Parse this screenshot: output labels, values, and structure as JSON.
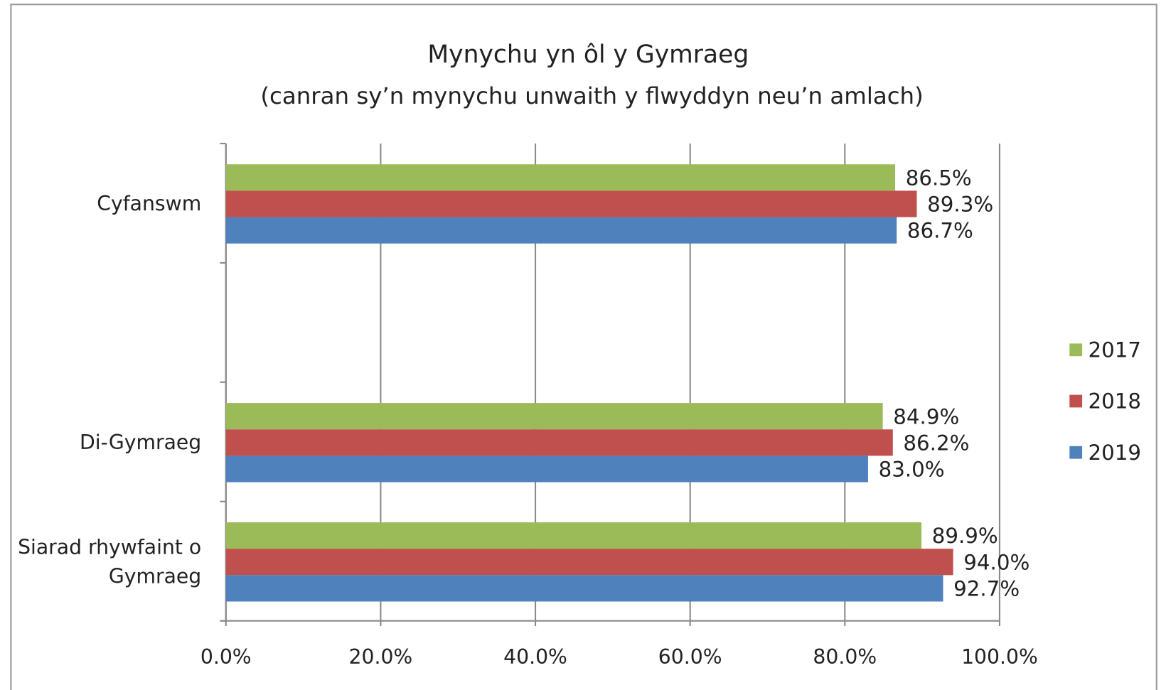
{
  "chart_data": {
    "type": "barh",
    "title": "Mynychu yn ôl y Gymraeg",
    "subtitle": "(canran sy’n mynychu unwaith y flwyddyn neu’n amlach)",
    "categories": [
      "Cyfanswm",
      null,
      "Di-Gymraeg",
      "Siarad rhywfaint o Gymraeg"
    ],
    "series": [
      {
        "name": "2017",
        "color": "#9bbb59",
        "values": [
          86.5,
          null,
          84.9,
          89.9
        ],
        "value_labels": [
          "86.5%",
          null,
          "84.9%",
          "89.9%"
        ]
      },
      {
        "name": "2018",
        "color": "#c0504d",
        "values": [
          89.3,
          null,
          86.2,
          94.0
        ],
        "value_labels": [
          "89.3%",
          null,
          "86.2%",
          "94.0%"
        ]
      },
      {
        "name": "2019",
        "color": "#4f81bd",
        "values": [
          86.7,
          null,
          83.0,
          92.7
        ],
        "value_labels": [
          "86.7%",
          null,
          "83.0%",
          "92.7%"
        ]
      }
    ],
    "xlim": [
      0,
      100
    ],
    "xticks": [
      {
        "value": 0,
        "label": "0.0%"
      },
      {
        "value": 20,
        "label": "20.0%"
      },
      {
        "value": 40,
        "label": "40.0%"
      },
      {
        "value": 60,
        "label": "60.0%"
      },
      {
        "value": 80,
        "label": "80.0%"
      },
      {
        "value": 100,
        "label": "100.0%"
      }
    ],
    "grid": true,
    "legend": "right"
  }
}
